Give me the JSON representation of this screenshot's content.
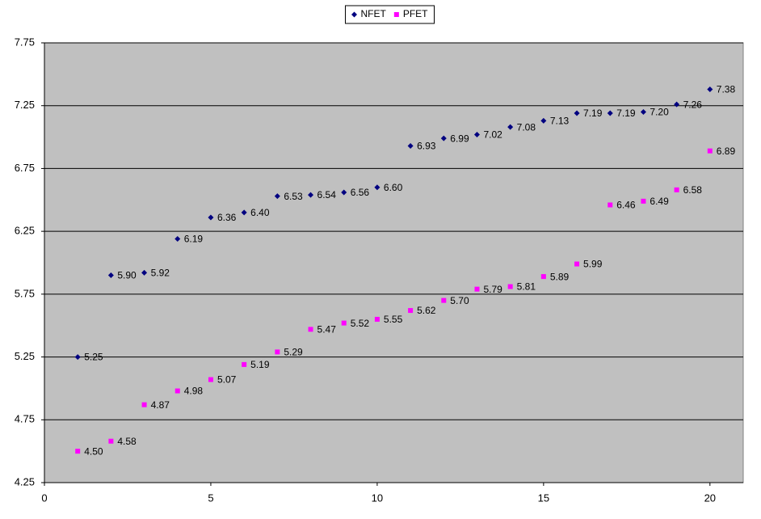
{
  "chart_data": {
    "type": "scatter",
    "x": [
      1,
      2,
      3,
      4,
      5,
      6,
      7,
      8,
      9,
      10,
      11,
      12,
      13,
      14,
      15,
      16,
      17,
      18,
      19,
      20
    ],
    "series": [
      {
        "name": "NFET",
        "color": "#000080",
        "marker": "diamond",
        "values": [
          5.25,
          5.9,
          5.92,
          6.19,
          6.36,
          6.4,
          6.53,
          6.54,
          6.56,
          6.6,
          6.93,
          6.99,
          7.02,
          7.08,
          7.13,
          7.19,
          7.19,
          7.2,
          7.26,
          7.38
        ],
        "value_labels": [
          "5.25",
          "5.90",
          "5.92",
          "6.19",
          "6.36",
          "6.40",
          "6.53",
          "6.54",
          "6.56",
          "6.60",
          "6.93",
          "6.99",
          "7.02",
          "7.08",
          "7.13",
          "7.19",
          "7.19",
          "7.20",
          "7.26",
          "7.38"
        ]
      },
      {
        "name": "PFET",
        "color": "#ff00ff",
        "marker": "square",
        "values": [
          4.5,
          4.58,
          4.87,
          4.98,
          5.07,
          5.19,
          5.29,
          5.47,
          5.52,
          5.55,
          5.62,
          5.7,
          5.79,
          5.81,
          5.89,
          5.99,
          6.46,
          6.49,
          6.58,
          6.89
        ],
        "value_labels": [
          "4.50",
          "4.58",
          "4.87",
          "4.98",
          "5.07",
          "5.19",
          "5.29",
          "5.47",
          "5.52",
          "5.55",
          "5.62",
          "5.70",
          "5.79",
          "5.81",
          "5.89",
          "5.99",
          "6.46",
          "6.49",
          "6.58",
          "6.89"
        ]
      }
    ],
    "xlim": [
      0,
      21
    ],
    "xticks": [
      0,
      5,
      10,
      15,
      20
    ],
    "ylim": [
      4.25,
      7.75
    ],
    "yticks": [
      4.25,
      4.75,
      5.25,
      5.75,
      6.25,
      6.75,
      7.25,
      7.75
    ],
    "grid": true,
    "legend": "top"
  }
}
